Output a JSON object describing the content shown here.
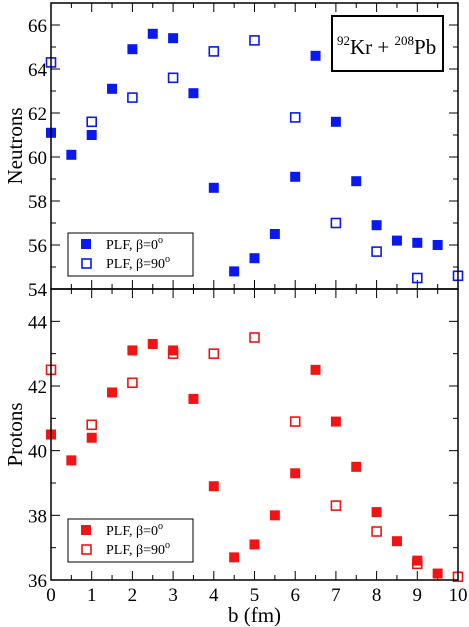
{
  "chart_data": [
    {
      "type": "scatter",
      "title": "",
      "xlabel": "",
      "ylabel": "Neutrons",
      "xlim": [
        0,
        10
      ],
      "ylim": [
        54,
        67
      ],
      "x_ticks": [
        0,
        1,
        2,
        3,
        4,
        5,
        6,
        7,
        8,
        9,
        10
      ],
      "y_ticks": [
        54,
        56,
        58,
        60,
        62,
        64,
        66
      ],
      "x_tick_labels_shown": false,
      "color": "#0a19f0",
      "annotation": {
        "mass_a": "92",
        "element_a": "Kr",
        "plus": " + ",
        "mass_b": "208",
        "element_b": "Pb"
      },
      "legend_position": "bottom-left",
      "series": [
        {
          "name": "PLF, β=0°",
          "label_text": "PLF, β=0",
          "label_sup": "o",
          "marker": "filled-square",
          "x": [
            0,
            0.5,
            1,
            1.5,
            2,
            2.5,
            3,
            3.5,
            4,
            4.5,
            5,
            5.5,
            6,
            6.5,
            7,
            7.5,
            8,
            8.5,
            9,
            9.5
          ],
          "y": [
            61.1,
            60.1,
            61.0,
            63.1,
            64.9,
            65.6,
            65.4,
            62.9,
            58.6,
            54.8,
            55.4,
            56.5,
            59.1,
            64.6,
            61.6,
            58.9,
            56.9,
            56.2,
            56.1,
            56.0
          ]
        },
        {
          "name": "PLF, β=90°",
          "label_text": "PLF, β=90",
          "label_sup": "o",
          "marker": "open-square",
          "x": [
            0,
            1,
            2,
            3,
            4,
            5,
            6,
            7,
            8,
            9,
            10
          ],
          "y": [
            64.3,
            61.6,
            62.7,
            63.6,
            64.8,
            65.3,
            61.8,
            57.0,
            55.7,
            54.5,
            54.6
          ]
        }
      ]
    },
    {
      "type": "scatter",
      "title": "",
      "xlabel": "b (fm)",
      "ylabel": "Protons",
      "xlim": [
        0,
        10
      ],
      "ylim": [
        36,
        45
      ],
      "x_ticks": [
        0,
        1,
        2,
        3,
        4,
        5,
        6,
        7,
        8,
        9,
        10
      ],
      "y_ticks": [
        36,
        38,
        40,
        42,
        44
      ],
      "x_tick_labels_shown": true,
      "color": "#f01414",
      "legend_position": "bottom-left",
      "series": [
        {
          "name": "PLF, β=0°",
          "label_text": "PLF, β=0",
          "label_sup": "o",
          "marker": "filled-square",
          "x": [
            0,
            0.5,
            1,
            1.5,
            2,
            2.5,
            3,
            3.5,
            4,
            4.5,
            5,
            5.5,
            6,
            6.5,
            7,
            7.5,
            8,
            8.5,
            9,
            9.5
          ],
          "y": [
            40.5,
            39.7,
            40.4,
            41.8,
            43.1,
            43.3,
            43.1,
            41.6,
            38.9,
            36.7,
            37.1,
            38.0,
            39.3,
            42.5,
            40.9,
            39.5,
            38.1,
            37.2,
            36.6,
            36.2
          ]
        },
        {
          "name": "PLF, β=90°",
          "label_text": "PLF, β=90",
          "label_sup": "o",
          "marker": "open-square",
          "x": [
            0,
            1,
            2,
            3,
            4,
            5,
            6,
            7,
            8,
            9,
            10
          ],
          "y": [
            42.5,
            40.8,
            42.1,
            43.0,
            43.0,
            43.5,
            40.9,
            38.3,
            37.5,
            36.5,
            36.1
          ]
        }
      ]
    }
  ]
}
